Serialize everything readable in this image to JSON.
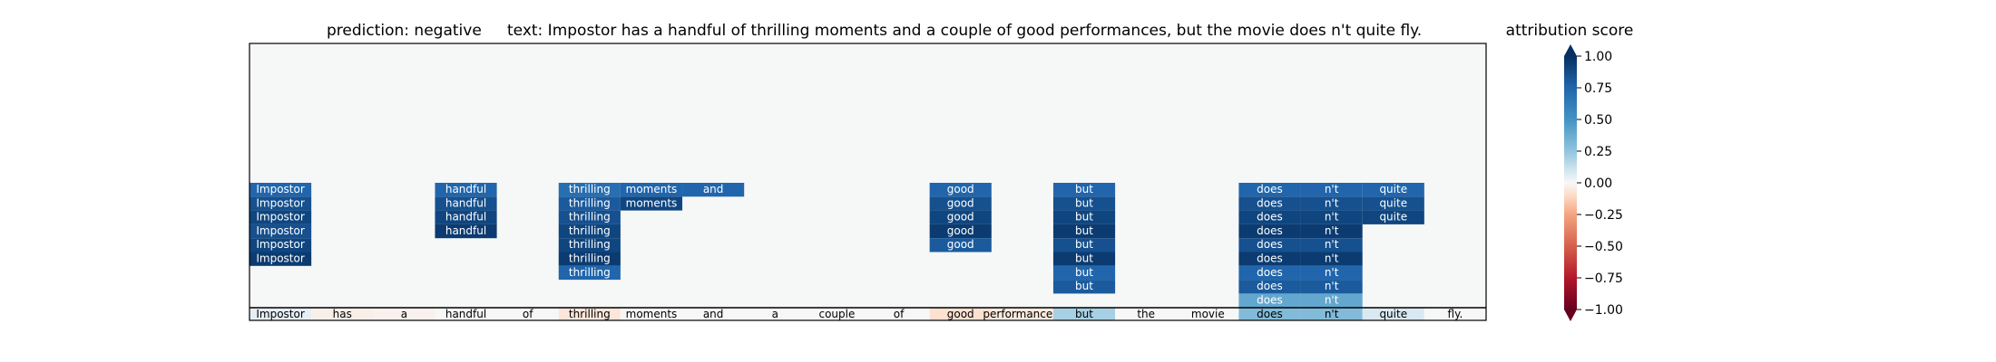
{
  "chart_data": {
    "type": "heatmap",
    "title_prediction": "prediction:  negative",
    "title_text": "text:  Impostor has a handful of thrilling moments and a couple of good performances, but the movie does n't quite fly.",
    "tokens": [
      "Impostor",
      "has",
      "a",
      "handful",
      "of",
      "thrilling",
      "moments",
      "and",
      "a",
      "couple",
      "of",
      "good",
      "performances,",
      "but",
      "the",
      "movie",
      "does",
      "n't",
      "quite",
      "fly."
    ],
    "base_scores": [
      0.05,
      -0.03,
      -0.02,
      0.0,
      0.0,
      -0.06,
      0.0,
      0.0,
      0.0,
      0.0,
      0.0,
      -0.08,
      -0.05,
      0.2,
      0.0,
      0.0,
      0.3,
      0.3,
      0.08,
      0.0
    ],
    "columns": [
      {
        "token_index": 0,
        "values": [
          0.75,
          0.85,
          0.9,
          0.85,
          0.9,
          0.95
        ]
      },
      {
        "token_index": 3,
        "values": [
          0.75,
          0.85,
          0.9,
          0.95
        ]
      },
      {
        "token_index": 5,
        "values": [
          0.7,
          0.8,
          0.85,
          0.9,
          0.9,
          0.95,
          0.75
        ]
      },
      {
        "token_index": 6,
        "values": [
          0.75,
          0.9
        ]
      },
      {
        "token_index": 7,
        "values": [
          0.75
        ]
      },
      {
        "token_index": 11,
        "values": [
          0.75,
          0.85,
          0.9,
          0.95,
          0.8
        ]
      },
      {
        "token_index": 13,
        "values": [
          0.75,
          0.85,
          0.9,
          0.95,
          0.85,
          0.95,
          0.75,
          0.8
        ]
      },
      {
        "token_index": 16,
        "values": [
          0.75,
          0.85,
          0.9,
          0.95,
          0.85,
          0.95,
          0.75,
          0.8,
          0.4
        ]
      },
      {
        "token_index": 17,
        "values": [
          0.75,
          0.85,
          0.9,
          0.95,
          0.85,
          0.95,
          0.75,
          0.8,
          0.4
        ]
      },
      {
        "token_index": 18,
        "values": [
          0.75,
          0.85,
          0.9
        ]
      }
    ],
    "colorbar": {
      "label": "attribution score",
      "range": [
        -1,
        1
      ],
      "ticks": [
        1.0,
        0.75,
        0.5,
        0.25,
        0.0,
        -0.25,
        -0.5,
        -0.75,
        -1.0
      ],
      "tick_labels": [
        "1.00",
        "0.75",
        "0.50",
        "0.25",
        "0.00",
        "−0.25",
        "−0.50",
        "−0.75",
        "−1.00"
      ],
      "colormap": "RdBu"
    },
    "background_color": "#f6f7f7"
  }
}
